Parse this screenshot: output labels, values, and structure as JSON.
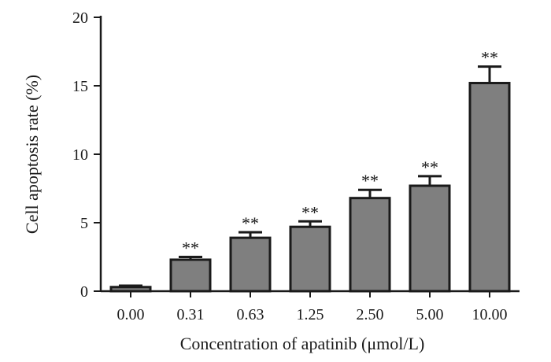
{
  "chart_data": {
    "type": "bar",
    "title": "",
    "xlabel": "Concentration of apatinib (μmol/L)",
    "ylabel": "Cell apoptosis rate (%)",
    "categories": [
      "0.00",
      "0.31",
      "0.63",
      "1.25",
      "2.50",
      "5.00",
      "10.00"
    ],
    "values": [
      0.3,
      2.3,
      3.9,
      4.7,
      6.8,
      7.7,
      15.2
    ],
    "errors": [
      0.1,
      0.2,
      0.4,
      0.4,
      0.6,
      0.7,
      1.2
    ],
    "annotations": [
      "",
      "**",
      "**",
      "**",
      "**",
      "**",
      "**"
    ],
    "ylim": [
      0,
      20
    ],
    "yticks": [
      0,
      5,
      10,
      15,
      20
    ],
    "grid": false,
    "legend": "none",
    "colors": {
      "bar_fill": "#7f7f7f",
      "bar_stroke": "#1a1a1a",
      "axis": "#1a1a1a"
    }
  }
}
